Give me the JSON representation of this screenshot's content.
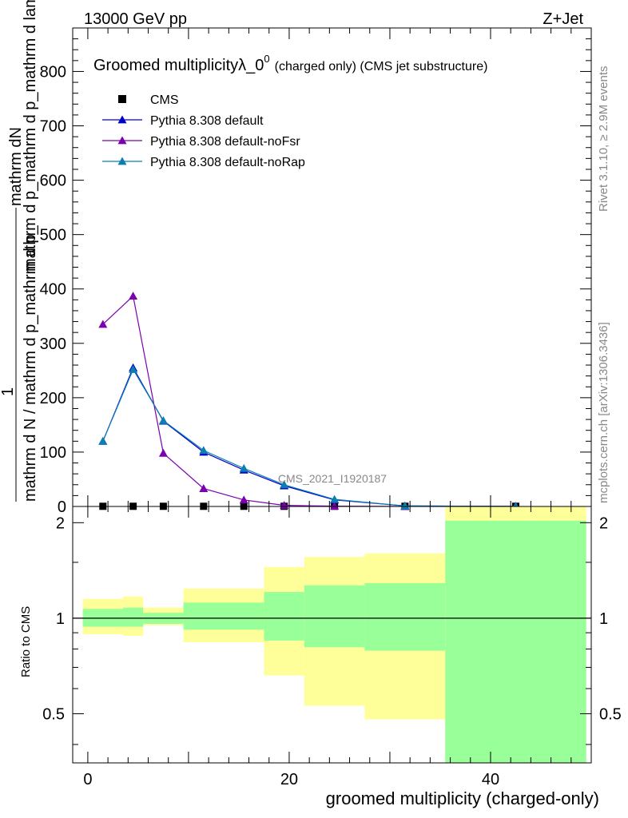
{
  "header": {
    "left": "13000 GeV pp",
    "right": "Z+Jet"
  },
  "side_labels": {
    "rivet": "Rivet 3.1.10, ≥ 2.9M events",
    "mcplots": "mcplots.cern.ch [arXiv:1306.3436]"
  },
  "colors": {
    "cms": "#000000",
    "default": "#0000cc",
    "noFsr": "#7a00b0",
    "noRap": "#0a7fb0",
    "band_inner": "#99ff99",
    "band_outer": "#ffff99"
  },
  "chart_data": [
    {
      "type": "line",
      "title": "Groomed multiplicityλ_0⁰ (charged only) (CMS jet substructure)",
      "title_main": "Groomed multiplicityλ_0",
      "title_sup": "0",
      "title_tail": "(charged only) (CMS jet substructure)",
      "watermark": "CMS_2021_I1920187",
      "ylabel_top": "mathrm dN",
      "ylabel_top2": "mathrm d p_mathrm d p_mathrm d lambda",
      "ylabel_one": "1",
      "ylabel_bottom": "mathrm d N / mathrm d p_mathrm d p_",
      "xlim": [
        -1.5,
        50
      ],
      "ylim": [
        0,
        880
      ],
      "y_ticks": [
        0,
        100,
        200,
        300,
        400,
        500,
        600,
        700,
        800
      ],
      "legend_position": "top-left",
      "series": [
        {
          "name": "CMS",
          "marker": "square",
          "x": [
            1.5,
            4.5,
            7.5,
            11.5,
            15.5,
            19.5,
            24.5,
            31.5,
            42.5
          ],
          "y": [
            0.3,
            0.3,
            0.3,
            0.3,
            0.3,
            0.3,
            0.3,
            0.3,
            0.3
          ]
        },
        {
          "name": "Pythia 8.308 default",
          "marker": "triangle",
          "x": [
            1.5,
            4.5,
            7.5,
            11.5,
            15.5,
            19.5,
            24.5,
            31.5,
            42.5
          ],
          "y": [
            120,
            255,
            157,
            100,
            67,
            38,
            12,
            1,
            0.2
          ]
        },
        {
          "name": "Pythia 8.308 default-noFsr",
          "marker": "triangle",
          "x": [
            1.5,
            4.5,
            7.5,
            11.5,
            15.5,
            19.5,
            24.5,
            31.5,
            42.5
          ],
          "y": [
            335,
            387,
            98,
            33,
            12,
            2,
            0.5,
            0.1,
            0.05
          ]
        },
        {
          "name": "Pythia 8.308 default-noRap",
          "marker": "triangle",
          "x": [
            1.5,
            4.5,
            7.5,
            11.5,
            15.5,
            19.5,
            24.5,
            31.5,
            42.5
          ],
          "y": [
            120,
            252,
            158,
            103,
            70,
            40,
            13,
            1,
            0.2
          ]
        }
      ]
    },
    {
      "type": "area",
      "ylabel": "Ratio to CMS",
      "xlabel": "groomed multiplicity (charged-only)",
      "xlim": [
        -1.5,
        50
      ],
      "ylim": [
        0.35,
        2.25
      ],
      "y_scale": "log",
      "y_ticks": [
        0.5,
        1,
        2
      ],
      "y_tick_labels": [
        "0.5",
        "1",
        "2"
      ],
      "x_ticks": [
        0,
        20,
        40
      ],
      "reference_line": 1,
      "bins": [
        {
          "lo": -0.5,
          "hi": 3.5,
          "inner": [
            0.94,
            1.07
          ],
          "outer": [
            0.89,
            1.15
          ]
        },
        {
          "lo": 3.5,
          "hi": 5.5,
          "inner": [
            0.94,
            1.08
          ],
          "outer": [
            0.88,
            1.17
          ]
        },
        {
          "lo": 5.5,
          "hi": 9.5,
          "inner": [
            0.96,
            1.04
          ],
          "outer": [
            0.95,
            1.08
          ]
        },
        {
          "lo": 9.5,
          "hi": 17.5,
          "inner": [
            0.92,
            1.12
          ],
          "outer": [
            0.84,
            1.24
          ]
        },
        {
          "lo": 17.5,
          "hi": 21.5,
          "inner": [
            0.85,
            1.21
          ],
          "outer": [
            0.66,
            1.45
          ]
        },
        {
          "lo": 21.5,
          "hi": 27.5,
          "inner": [
            0.81,
            1.27
          ],
          "outer": [
            0.53,
            1.56
          ]
        },
        {
          "lo": 27.5,
          "hi": 35.5,
          "inner": [
            0.79,
            1.29
          ],
          "outer": [
            0.48,
            1.6
          ]
        },
        {
          "lo": 35.5,
          "hi": 49.5,
          "inner": [
            0.35,
            2.03
          ],
          "outer": [
            0.35,
            2.25
          ]
        }
      ]
    }
  ]
}
